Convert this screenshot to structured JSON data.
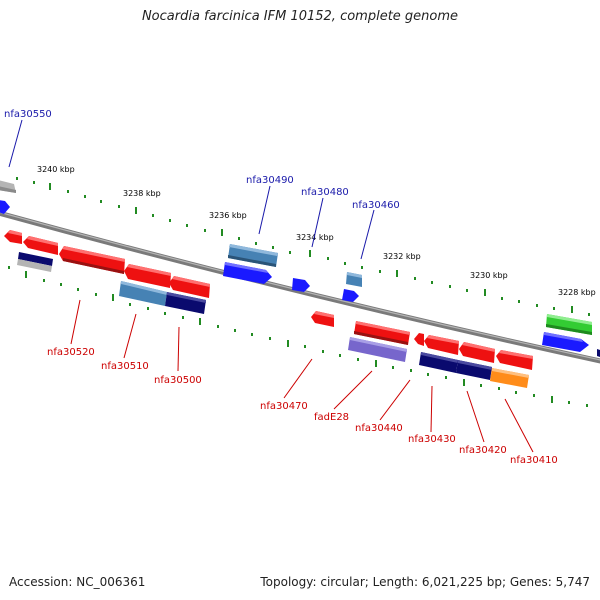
{
  "title": "Nocardia farcinica IFM 10152, complete genome",
  "footer": {
    "accession": "Accession: NC_006361",
    "summary": "Topology: circular; Length: 6,021,225 bp; Genes: 5,747"
  },
  "colors": {
    "backbone": "#808080",
    "tick": "#228b22",
    "label_blue": "#1a1aaa",
    "label_red": "#cc0000",
    "gene_red": "#ee1111",
    "gene_blue": "#1a1aff",
    "gene_steelblue": "#4682b4",
    "gene_navy": "#0a0a6e",
    "gene_purple": "#7766cc",
    "gene_green": "#33cc33",
    "gene_orange": "#ff8c1a",
    "gene_grey": "#b4b4b4"
  },
  "scale_labels": [
    "3240 kbp",
    "3238 kbp",
    "3236 kbp",
    "3234 kbp",
    "3232 kbp",
    "3230 kbp",
    "3228 kbp"
  ],
  "genes_top_labels": [
    "nfa30550",
    "nfa30490",
    "nfa30480",
    "nfa30460"
  ],
  "genes_bottom_labels": [
    "nfa30520",
    "nfa30510",
    "nfa30500",
    "nfa30470",
    "fadE28",
    "nfa30440",
    "nfa30430",
    "nfa30420",
    "nfa30410"
  ]
}
